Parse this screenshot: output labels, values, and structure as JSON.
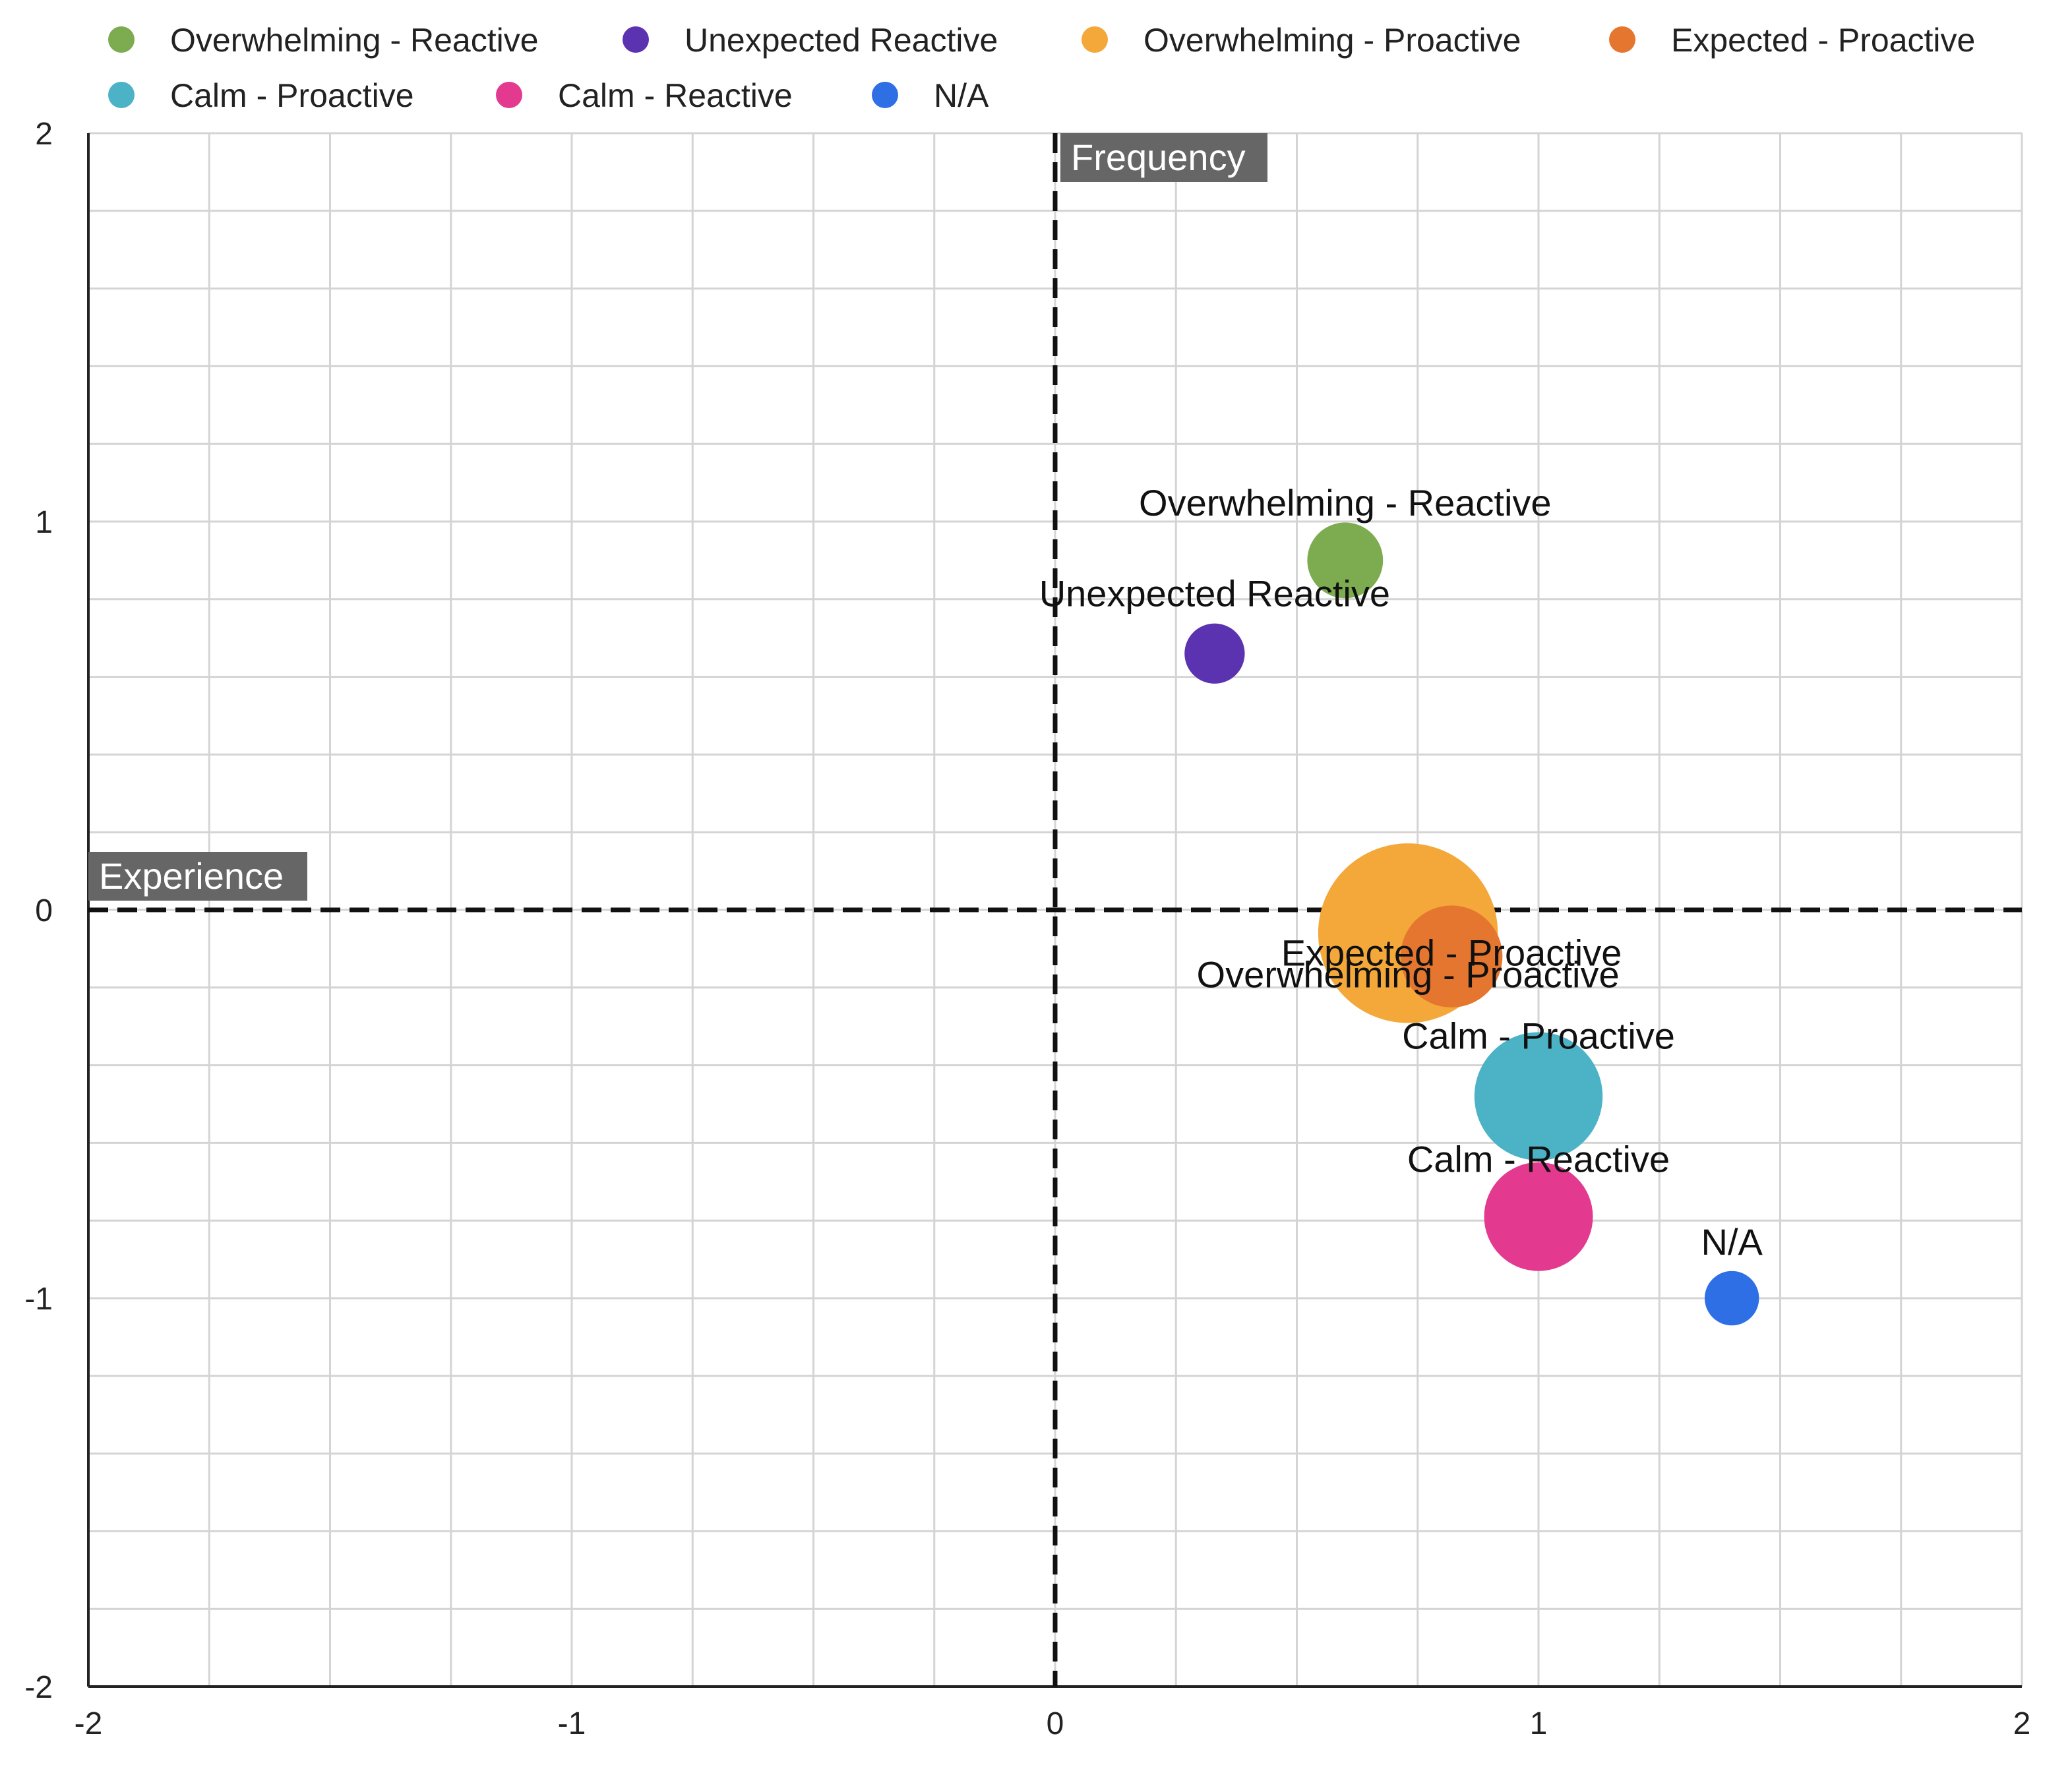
{
  "chart_data": {
    "type": "scatter",
    "subtype": "bubble",
    "x_axis_label": "Experience",
    "y_axis_label": "Frequency",
    "xlim": [
      -2,
      2
    ],
    "ylim": [
      -2,
      2
    ],
    "x_ticks": [
      "-2",
      "-1",
      "0",
      "1",
      "2"
    ],
    "y_ticks": [
      "2",
      "1",
      "0",
      "-1",
      "-2"
    ],
    "grid": true,
    "legend_position": "top",
    "series": [
      {
        "name": "Overwhelming - Reactive",
        "color": "#7cac4f",
        "x": 0.6,
        "y": 0.9,
        "size": 0.78,
        "label": "Overwhelming - Reactive"
      },
      {
        "name": "Unexpected Reactive",
        "color": "#5b33b0",
        "x": 0.33,
        "y": 0.66,
        "size": 0.62,
        "label": "Unexpected Reactive"
      },
      {
        "name": "Overwhelming - Proactive",
        "color": "#f4a83a",
        "x": 0.73,
        "y": -0.06,
        "size": 1.85,
        "label": "Overwhelming - Proactive"
      },
      {
        "name": "Expected - Proactive",
        "color": "#e5762f",
        "x": 0.82,
        "y": -0.12,
        "size": 1.05,
        "label": "Expected - Proactive"
      },
      {
        "name": "Calm - Proactive",
        "color": "#4cb3c6",
        "x": 1.0,
        "y": -0.48,
        "size": 1.32,
        "label": "Calm - Proactive"
      },
      {
        "name": "Calm - Reactive",
        "color": "#e33a8f",
        "x": 1.0,
        "y": -0.79,
        "size": 1.12,
        "label": "Calm - Reactive"
      },
      {
        "name": "N/A",
        "color": "#2f6fe6",
        "x": 1.4,
        "y": -1.0,
        "size": 0.56,
        "label": "N/A"
      }
    ]
  }
}
